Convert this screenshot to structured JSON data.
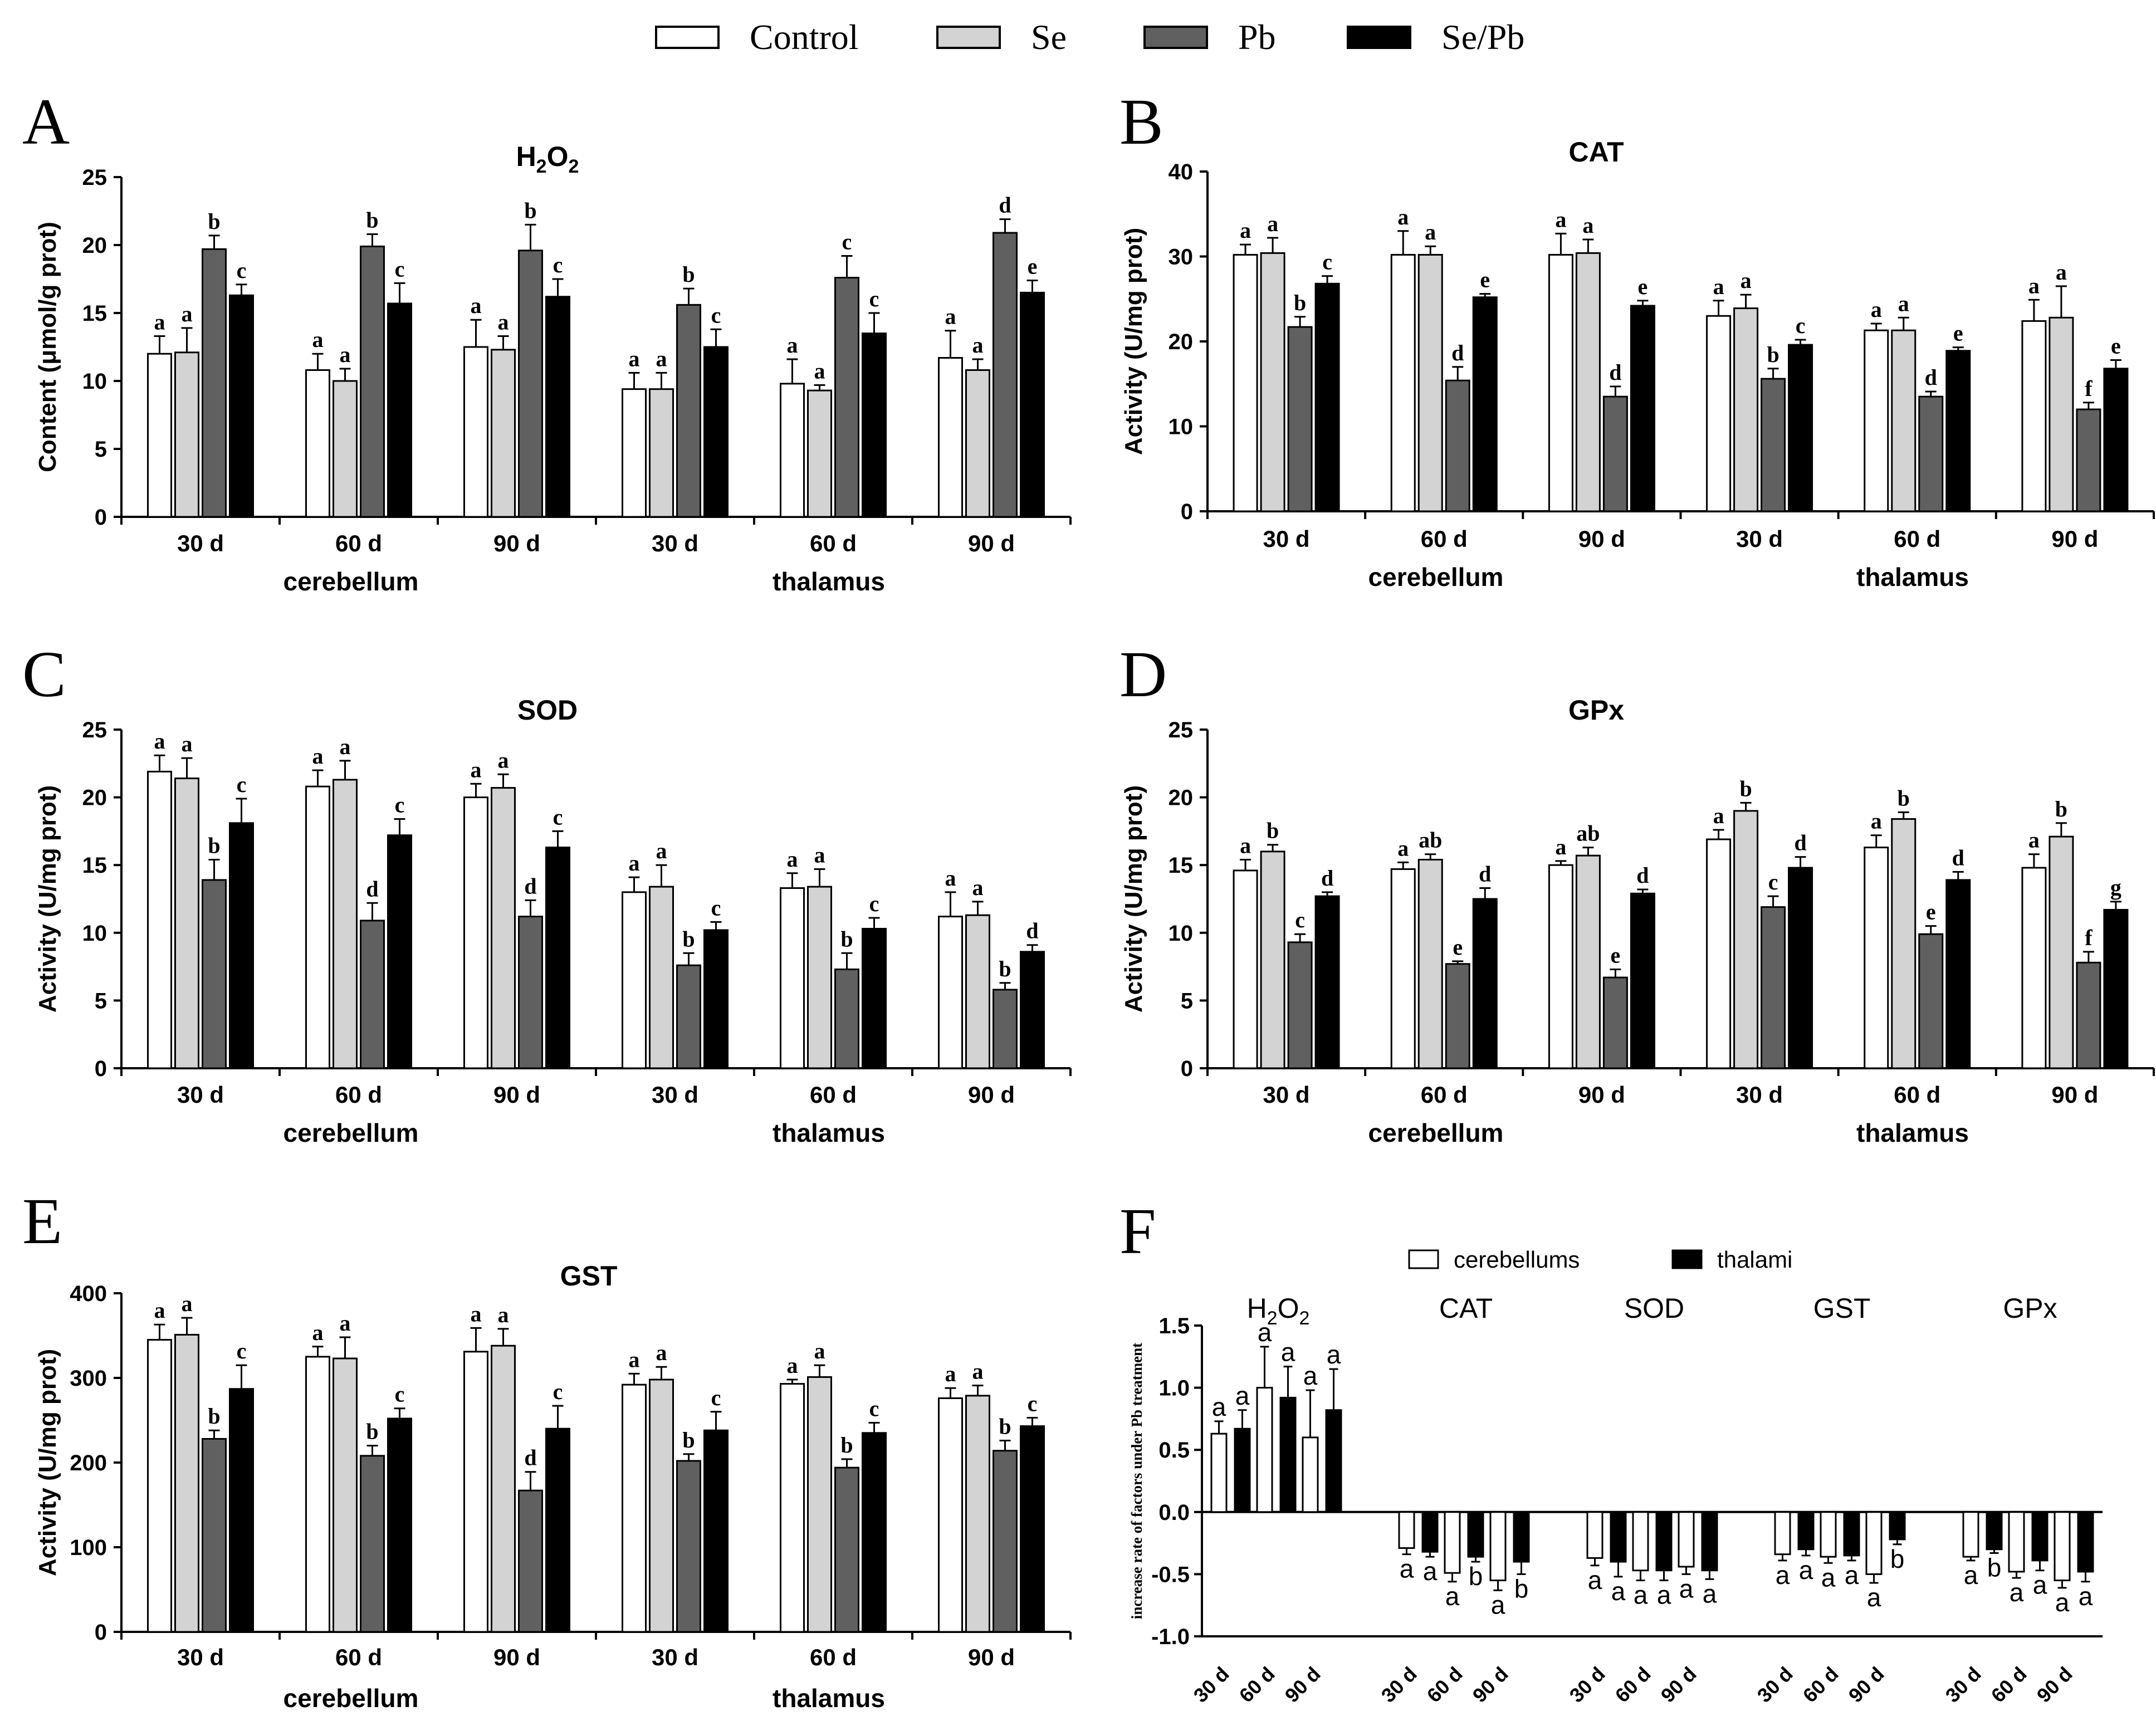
{
  "legend": {
    "items": [
      {
        "label": "Control",
        "color": "#ffffff"
      },
      {
        "label": "Se",
        "color": "#d3d3d3"
      },
      {
        "label": "Pb",
        "color": "#606060"
      },
      {
        "label": "Se/Pb",
        "color": "#000000"
      }
    ]
  },
  "chart_data": [
    {
      "panel": "A",
      "type": "bar",
      "title": "H2O2",
      "title_main": "H",
      "title_sub1": "2",
      "title_mid": "O",
      "title_sub2": "2",
      "ylabel": "Content (μmol/g prot)",
      "ylim": [
        0,
        25
      ],
      "yticks": [
        0,
        5,
        10,
        15,
        20,
        25
      ],
      "categories": [
        "30 d",
        "60 d",
        "90 d",
        "30 d",
        "60 d",
        "90 d"
      ],
      "groups": [
        "cerebellum",
        "thalamus"
      ],
      "series": [
        {
          "name": "Control",
          "values": [
            12.0,
            10.8,
            12.5,
            9.4,
            9.8,
            11.7
          ],
          "errors": [
            1.3,
            1.2,
            2.0,
            1.2,
            1.8,
            2.0
          ],
          "labels": [
            "a",
            "a",
            "a",
            "a",
            "a",
            "a"
          ]
        },
        {
          "name": "Se",
          "values": [
            12.1,
            10.0,
            12.3,
            9.4,
            9.3,
            10.8
          ],
          "errors": [
            1.8,
            0.9,
            1.0,
            1.2,
            0.4,
            0.8
          ],
          "labels": [
            "a",
            "a",
            "a",
            "a",
            "a",
            "a"
          ]
        },
        {
          "name": "Pb",
          "values": [
            19.7,
            19.9,
            19.6,
            15.6,
            17.6,
            20.9
          ],
          "errors": [
            1.0,
            0.9,
            1.9,
            1.2,
            1.6,
            1.0
          ],
          "labels": [
            "b",
            "b",
            "b",
            "b",
            "c",
            "d"
          ]
        },
        {
          "name": "Se/Pb",
          "values": [
            16.3,
            15.7,
            16.2,
            12.5,
            13.5,
            16.5
          ],
          "errors": [
            0.8,
            1.5,
            1.3,
            1.3,
            1.5,
            0.9
          ],
          "labels": [
            "c",
            "c",
            "c",
            "c",
            "c",
            "e"
          ]
        }
      ]
    },
    {
      "panel": "B",
      "type": "bar",
      "title": "CAT",
      "ylabel": "Activity (U/mg prot)",
      "ylim": [
        0,
        40
      ],
      "yticks": [
        0,
        10,
        20,
        30,
        40
      ],
      "categories": [
        "30 d",
        "60 d",
        "90 d",
        "30 d",
        "60 d",
        "90 d"
      ],
      "groups": [
        "cerebellum",
        "thalamus"
      ],
      "series": [
        {
          "name": "Control",
          "values": [
            30.2,
            30.2,
            30.2,
            23.0,
            21.3,
            22.4
          ],
          "errors": [
            1.2,
            2.8,
            2.5,
            1.8,
            0.8,
            2.5
          ],
          "labels": [
            "a",
            "a",
            "a",
            "a",
            "a",
            "a"
          ]
        },
        {
          "name": "Se",
          "values": [
            30.4,
            30.2,
            30.4,
            23.9,
            21.3,
            22.8
          ],
          "errors": [
            1.8,
            1.0,
            1.6,
            1.6,
            1.5,
            3.7
          ],
          "labels": [
            "a",
            "a",
            "a",
            "a",
            "a",
            "a"
          ]
        },
        {
          "name": "Pb",
          "values": [
            21.7,
            15.4,
            13.5,
            15.6,
            13.5,
            12.0
          ],
          "errors": [
            1.2,
            1.6,
            1.2,
            1.2,
            0.6,
            0.8
          ],
          "labels": [
            "b",
            "d",
            "d",
            "b",
            "d",
            "f"
          ]
        },
        {
          "name": "Se/Pb",
          "values": [
            26.8,
            25.2,
            24.2,
            19.6,
            18.9,
            16.8
          ],
          "errors": [
            0.9,
            0.4,
            0.6,
            0.6,
            0.4,
            1.0
          ],
          "labels": [
            "c",
            "e",
            "e",
            "c",
            "e",
            "e"
          ]
        }
      ]
    },
    {
      "panel": "C",
      "type": "bar",
      "title": "SOD",
      "ylabel": "Activity (U/mg prot)",
      "ylim": [
        0,
        25
      ],
      "yticks": [
        0,
        5,
        10,
        15,
        20,
        25
      ],
      "categories": [
        "30 d",
        "60 d",
        "90 d",
        "30 d",
        "60 d",
        "90 d"
      ],
      "groups": [
        "cerebellum",
        "thalamus"
      ],
      "series": [
        {
          "name": "Control",
          "values": [
            21.9,
            20.8,
            20.0,
            13.0,
            13.3,
            11.2
          ],
          "errors": [
            1.2,
            1.2,
            1.0,
            1.1,
            1.1,
            1.8
          ],
          "labels": [
            "a",
            "a",
            "a",
            "a",
            "a",
            "a"
          ]
        },
        {
          "name": "Se",
          "values": [
            21.4,
            21.3,
            20.7,
            13.4,
            13.4,
            11.3
          ],
          "errors": [
            1.5,
            1.4,
            1.0,
            1.6,
            1.3,
            1.0
          ],
          "labels": [
            "a",
            "a",
            "a",
            "a",
            "a",
            "a"
          ]
        },
        {
          "name": "Pb",
          "values": [
            13.9,
            10.9,
            11.2,
            7.6,
            7.3,
            5.8
          ],
          "errors": [
            1.5,
            1.3,
            1.2,
            0.9,
            1.2,
            0.5
          ],
          "labels": [
            "b",
            "d",
            "d",
            "b",
            "b",
            "b"
          ]
        },
        {
          "name": "Se/Pb",
          "values": [
            18.1,
            17.2,
            16.3,
            10.2,
            10.3,
            8.6
          ],
          "errors": [
            1.8,
            1.2,
            1.2,
            0.6,
            0.8,
            0.5
          ],
          "labels": [
            "c",
            "c",
            "c",
            "c",
            "c",
            "d"
          ]
        }
      ]
    },
    {
      "panel": "D",
      "type": "bar",
      "title": "GPx",
      "ylabel": "Activity (U/mg prot)",
      "ylim": [
        0,
        25
      ],
      "yticks": [
        0,
        5,
        10,
        15,
        20,
        25
      ],
      "categories": [
        "30 d",
        "60 d",
        "90 d",
        "30 d",
        "60 d",
        "90 d"
      ],
      "groups": [
        "cerebellum",
        "thalamus"
      ],
      "series": [
        {
          "name": "Control",
          "values": [
            14.6,
            14.7,
            15.0,
            16.9,
            16.3,
            14.8
          ],
          "errors": [
            0.8,
            0.5,
            0.3,
            0.7,
            0.9,
            1.0
          ],
          "labels": [
            "a",
            "a",
            "a",
            "a",
            "a",
            "a"
          ]
        },
        {
          "name": "Se",
          "values": [
            16.0,
            15.4,
            15.7,
            19.0,
            18.4,
            17.1
          ],
          "errors": [
            0.5,
            0.4,
            0.6,
            0.6,
            0.5,
            1.0
          ],
          "labels": [
            "b",
            "ab",
            "ab",
            "b",
            "b",
            "b"
          ]
        },
        {
          "name": "Pb",
          "values": [
            9.3,
            7.7,
            6.7,
            11.9,
            9.9,
            7.8
          ],
          "errors": [
            0.6,
            0.2,
            0.6,
            0.8,
            0.6,
            0.8
          ],
          "labels": [
            "c",
            "e",
            "e",
            "c",
            "e",
            "f"
          ]
        },
        {
          "name": "Se/Pb",
          "values": [
            12.7,
            12.5,
            12.9,
            14.8,
            13.9,
            11.7
          ],
          "errors": [
            0.3,
            0.8,
            0.3,
            0.8,
            0.6,
            0.6
          ],
          "labels": [
            "d",
            "d",
            "d",
            "d",
            "d",
            "g"
          ]
        }
      ]
    },
    {
      "panel": "E",
      "type": "bar",
      "title": "GST",
      "ylabel": "Activity (U/mg prot)",
      "ylim": [
        0,
        400
      ],
      "yticks": [
        0,
        100,
        200,
        300,
        400
      ],
      "categories": [
        "30 d",
        "60 d",
        "90 d",
        "30 d",
        "60 d",
        "90 d"
      ],
      "groups": [
        "cerebellum",
        "thalamus"
      ],
      "series": [
        {
          "name": "Control",
          "values": [
            345,
            325,
            331,
            292,
            293,
            276
          ],
          "errors": [
            18,
            12,
            28,
            13,
            5,
            12
          ],
          "labels": [
            "a",
            "a",
            "a",
            "a",
            "a",
            "a"
          ]
        },
        {
          "name": "Se",
          "values": [
            351,
            323,
            338,
            298,
            301,
            279
          ],
          "errors": [
            20,
            25,
            20,
            15,
            14,
            12
          ],
          "labels": [
            "a",
            "a",
            "a",
            "a",
            "a",
            "a"
          ]
        },
        {
          "name": "Pb",
          "values": [
            228,
            208,
            167,
            202,
            194,
            214
          ],
          "errors": [
            10,
            12,
            22,
            8,
            10,
            12
          ],
          "labels": [
            "b",
            "b",
            "d",
            "b",
            "b",
            "b"
          ]
        },
        {
          "name": "Se/Pb",
          "values": [
            287,
            252,
            240,
            238,
            235,
            243
          ],
          "errors": [
            28,
            12,
            27,
            22,
            12,
            10
          ],
          "labels": [
            "c",
            "c",
            "c",
            "c",
            "c",
            "c"
          ]
        }
      ]
    },
    {
      "panel": "F",
      "type": "bar",
      "ylabel": "increase rate of factors under Pb treatment",
      "ylim": [
        -1.0,
        1.5
      ],
      "yticks": [
        -1.0,
        -0.5,
        0.0,
        0.5,
        1.0,
        1.5
      ],
      "ytick_labels": [
        "-1.0",
        "-0.5",
        "0.0",
        "0.5",
        "1.0",
        "1.5"
      ],
      "factors": [
        {
          "name": "H2O2",
          "name_main": "H",
          "name_sub1": "2",
          "name_mid": "O",
          "name_sub2": "2"
        },
        {
          "name": "CAT"
        },
        {
          "name": "SOD"
        },
        {
          "name": "GST"
        },
        {
          "name": "GPx"
        }
      ],
      "times": [
        "30 d",
        "60 d",
        "90 d"
      ],
      "series": [
        {
          "name": "cerebellums",
          "color": "#ffffff",
          "values": [
            [
              0.63,
              1.0,
              0.6
            ],
            [
              -0.29,
              -0.49,
              -0.55
            ],
            [
              -0.37,
              -0.47,
              -0.44
            ],
            [
              -0.34,
              -0.36,
              -0.5
            ],
            [
              -0.36,
              -0.48,
              -0.55
            ]
          ],
          "errors": [
            [
              0.1,
              0.33,
              0.38
            ],
            [
              0.05,
              0.07,
              0.08
            ],
            [
              0.06,
              0.08,
              0.06
            ],
            [
              0.05,
              0.05,
              0.07
            ],
            [
              0.03,
              0.05,
              0.06
            ]
          ],
          "labels": [
            [
              "a",
              "a",
              "a"
            ],
            [
              "a",
              "a",
              "a"
            ],
            [
              "a",
              "a",
              "a"
            ],
            [
              "a",
              "a",
              "a"
            ],
            [
              "a",
              "a",
              "a"
            ]
          ]
        },
        {
          "name": "thalami",
          "color": "#000000",
          "values": [
            [
              0.67,
              0.92,
              0.82
            ],
            [
              -0.32,
              -0.36,
              -0.4
            ],
            [
              -0.4,
              -0.47,
              -0.47
            ],
            [
              -0.3,
              -0.35,
              -0.22
            ],
            [
              -0.3,
              -0.39,
              -0.48
            ]
          ],
          "errors": [
            [
              0.15,
              0.25,
              0.33
            ],
            [
              0.04,
              0.04,
              0.1
            ],
            [
              0.12,
              0.08,
              0.07
            ],
            [
              0.05,
              0.04,
              0.04
            ],
            [
              0.03,
              0.08,
              0.08
            ]
          ],
          "labels": [
            [
              "a",
              "a",
              "a"
            ],
            [
              "a",
              "b",
              "b"
            ],
            [
              "a",
              "a",
              "a"
            ],
            [
              "a",
              "a",
              "b"
            ],
            [
              "b",
              "a",
              "a"
            ]
          ]
        }
      ]
    }
  ]
}
